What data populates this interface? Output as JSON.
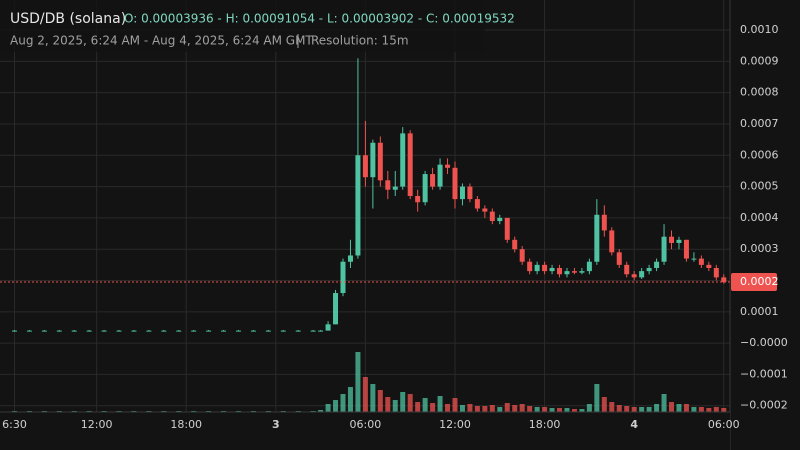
{
  "chart_data": {
    "type": "candlestick",
    "symbol": "USD/DB (solana)",
    "ohlc_text": "O: 0.00003936 - H: 0.00091054 - L: 0.00003902 - C: 0.00019532",
    "date_range": "Aug 2, 2025, 6:24 AM - Aug 4, 2025, 6:24 AM GMT",
    "resolution": "Resolution: 15m",
    "up_color": "#4fc3a1",
    "down_color": "#ef5350",
    "grid": true,
    "xlim": [
      6.4,
      54.35
    ],
    "xticks": [
      {
        "value": 6.5,
        "label": "6:30"
      },
      {
        "value": 12,
        "label": "12:00"
      },
      {
        "value": 18,
        "label": "18:00"
      },
      {
        "value": 24,
        "label": "3"
      },
      {
        "value": 30,
        "label": "06:00"
      },
      {
        "value": 36,
        "label": "12:00"
      },
      {
        "value": 42,
        "label": "18:00"
      },
      {
        "value": 48,
        "label": "4"
      },
      {
        "value": 54,
        "label": "06:00"
      }
    ],
    "ylim": [
      -0.00022,
      0.001096
    ],
    "yticks": [
      {
        "value": 0.001,
        "label": "0.0010"
      },
      {
        "value": 0.0009,
        "label": "0.0009"
      },
      {
        "value": 0.0008,
        "label": "0.0008"
      },
      {
        "value": 0.0007,
        "label": "0.0007"
      },
      {
        "value": 0.0006,
        "label": "0.0006"
      },
      {
        "value": 0.0005,
        "label": "0.0005"
      },
      {
        "value": 0.0004,
        "label": "0.0004"
      },
      {
        "value": 0.0003,
        "label": "0.0003"
      },
      {
        "value": 0.0002,
        "label": "0.0002"
      },
      {
        "value": 0.0001,
        "label": "0.0001"
      },
      {
        "value": 0,
        "label": "−0.0000"
      },
      {
        "value": -0.0001,
        "label": "−0.0001"
      },
      {
        "value": -0.0002,
        "label": "−0.0002"
      }
    ],
    "last_price": {
      "value": 0.00019532,
      "label": "0.0002"
    },
    "x": [
      6.5,
      7.5,
      8.5,
      9.5,
      10.5,
      11.5,
      12.5,
      13.5,
      14.5,
      15.5,
      16.5,
      17.5,
      18.5,
      19.5,
      20.5,
      21.5,
      22.5,
      23.5,
      24.5,
      25.5,
      26.5,
      27,
      27.5,
      28,
      28.5,
      29,
      29.5,
      30,
      30.5,
      31,
      31.5,
      32,
      32.5,
      33,
      33.5,
      34,
      34.5,
      35,
      35.5,
      36,
      36.5,
      37,
      37.5,
      38,
      38.5,
      39,
      39.5,
      40,
      40.5,
      41,
      41.5,
      42,
      42.5,
      43,
      43.5,
      44,
      44.5,
      45,
      45.5,
      46,
      46.5,
      47,
      47.5,
      48,
      48.5,
      49,
      49.5,
      50,
      50.5,
      51,
      51.5,
      52,
      52.5,
      53,
      53.5,
      54
    ],
    "open": [
      4e-05,
      4e-05,
      4e-05,
      4e-05,
      4e-05,
      4e-05,
      4e-05,
      4e-05,
      4e-05,
      4e-05,
      4e-05,
      4e-05,
      4e-05,
      4e-05,
      4e-05,
      4e-05,
      4e-05,
      4e-05,
      4e-05,
      4e-05,
      4e-05,
      4e-05,
      4e-05,
      6e-05,
      0.00016,
      0.00026,
      0.00028,
      0.0006,
      0.00053,
      0.00064,
      0.00052,
      0.00049,
      0.0005,
      0.00067,
      0.00047,
      0.00045,
      0.00054,
      0.0005,
      0.00057,
      0.00056,
      0.00046,
      0.0005,
      0.00046,
      0.00043,
      0.00042,
      0.00039,
      0.0004,
      0.00033,
      0.0003,
      0.00026,
      0.00023,
      0.00025,
      0.00023,
      0.00024,
      0.00022,
      0.00023,
      0.000225,
      0.00023,
      0.00026,
      0.00041,
      0.00036,
      0.00029,
      0.00025,
      0.00022,
      0.00021,
      0.00023,
      0.00024,
      0.00026,
      0.00034,
      0.00032,
      0.00033,
      0.00027,
      0.00027,
      0.00025,
      0.00024,
      0.00021
    ],
    "high": [
      4.2e-05,
      4.2e-05,
      4.2e-05,
      4.2e-05,
      4.2e-05,
      4.2e-05,
      4.2e-05,
      4.2e-05,
      4.2e-05,
      4.2e-05,
      4.2e-05,
      4.2e-05,
      4.2e-05,
      4.2e-05,
      4.2e-05,
      4.2e-05,
      4.2e-05,
      4.2e-05,
      4.2e-05,
      4.2e-05,
      4.2e-05,
      4.2e-05,
      7e-05,
      0.00017,
      0.00027,
      0.00033,
      0.00091,
      0.00071,
      0.00065,
      0.00066,
      0.00055,
      0.00055,
      0.00069,
      0.00068,
      0.00049,
      0.00055,
      0.00056,
      0.00059,
      0.00059,
      0.00058,
      0.00051,
      0.00051,
      0.00047,
      0.00044,
      0.00043,
      0.00041,
      0.0004,
      0.00034,
      0.00031,
      0.00027,
      0.00026,
      0.00026,
      0.00025,
      0.00025,
      0.00024,
      0.00024,
      0.00024,
      0.00027,
      0.00046,
      0.00044,
      0.00037,
      0.0003,
      0.00026,
      0.00023,
      0.00024,
      0.00025,
      0.00027,
      0.00038,
      0.00036,
      0.00034,
      0.00033,
      0.00029,
      0.00028,
      0.00026,
      0.00025,
      0.00022
    ],
    "low": [
      3.9e-05,
      3.9e-05,
      3.9e-05,
      3.9e-05,
      3.9e-05,
      3.9e-05,
      3.9e-05,
      3.9e-05,
      3.9e-05,
      3.9e-05,
      3.9e-05,
      3.9e-05,
      3.9e-05,
      3.9e-05,
      3.9e-05,
      3.9e-05,
      3.9e-05,
      3.9e-05,
      3.9e-05,
      3.9e-05,
      3.9e-05,
      3.9e-05,
      4e-05,
      6e-05,
      0.00015,
      0.00024,
      0.00027,
      0.0005,
      0.00043,
      0.0005,
      0.00046,
      0.00047,
      0.00049,
      0.00046,
      0.00042,
      0.00044,
      0.00049,
      0.00049,
      0.00054,
      0.00043,
      0.00044,
      0.00045,
      0.00042,
      0.0004,
      0.00038,
      0.00038,
      0.00032,
      0.00029,
      0.00025,
      0.00022,
      0.00022,
      0.00022,
      0.00022,
      0.00021,
      0.00021,
      0.00022,
      0.00022,
      0.00022,
      0.00025,
      0.00034,
      0.00028,
      0.00024,
      0.00021,
      0.0002,
      0.000205,
      0.00022,
      0.00023,
      0.00025,
      0.0003,
      0.0003,
      0.00026,
      0.00026,
      0.00024,
      0.00023,
      0.0002,
      0.00019
    ],
    "close": [
      4e-05,
      4e-05,
      4e-05,
      4e-05,
      4e-05,
      4e-05,
      4e-05,
      4e-05,
      4e-05,
      4e-05,
      4e-05,
      4e-05,
      4e-05,
      4e-05,
      4e-05,
      4e-05,
      4e-05,
      4e-05,
      4e-05,
      4e-05,
      4e-05,
      4e-05,
      6e-05,
      0.00016,
      0.00026,
      0.00028,
      0.0006,
      0.00053,
      0.00064,
      0.00052,
      0.00049,
      0.0005,
      0.00067,
      0.00047,
      0.00045,
      0.00054,
      0.0005,
      0.00057,
      0.00056,
      0.00046,
      0.0005,
      0.00046,
      0.00043,
      0.00042,
      0.00039,
      0.0004,
      0.00033,
      0.0003,
      0.00026,
      0.00023,
      0.00025,
      0.00023,
      0.00024,
      0.00022,
      0.00023,
      0.000225,
      0.00023,
      0.00026,
      0.00041,
      0.00036,
      0.00029,
      0.00025,
      0.00022,
      0.00021,
      0.00023,
      0.00024,
      0.00026,
      0.00034,
      0.00032,
      0.00033,
      0.00027,
      0.00027,
      0.00025,
      0.00024,
      0.00021,
      0.000195
    ],
    "volume": [
      1,
      1,
      1,
      1,
      1,
      1,
      1,
      1,
      1,
      1,
      1,
      1,
      1,
      1,
      1,
      1,
      1,
      1,
      1,
      1,
      1,
      2,
      8,
      12,
      18,
      25,
      60,
      35,
      28,
      22,
      15,
      12,
      20,
      18,
      10,
      14,
      9,
      16,
      8,
      14,
      7,
      8,
      6,
      6,
      7,
      5,
      9,
      7,
      8,
      6,
      5,
      5,
      4,
      4,
      4,
      3,
      3,
      8,
      28,
      15,
      10,
      7,
      6,
      5,
      5,
      5,
      8,
      18,
      10,
      8,
      8,
      5,
      5,
      4,
      5,
      4
    ]
  }
}
